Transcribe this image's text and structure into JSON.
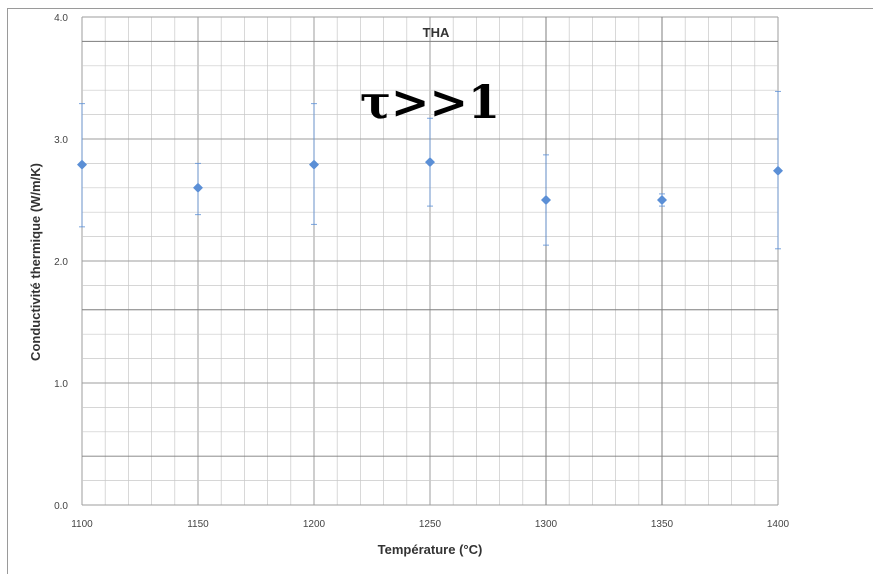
{
  "chart_data": {
    "type": "scatter",
    "title": "THA",
    "annotation": "τ>>1",
    "xlabel": "Température (°C)",
    "ylabel": "Conductivité thermique (W/m/K)",
    "xlim": [
      1100,
      1400
    ],
    "ylim": [
      0.0,
      4.0
    ],
    "xticks": [
      "1100",
      "1150",
      "1200",
      "1250",
      "1300",
      "1350",
      "1400"
    ],
    "yticks": [
      "0.0",
      "1.0",
      "2.0",
      "3.0",
      "4.0"
    ],
    "grid": true,
    "colors": {
      "marker": "#5b8fd6",
      "grid": "#c8c8c8",
      "major_grid": "#7f7f7f"
    },
    "points": [
      {
        "x": 1100,
        "y": 2.79,
        "err_low": 2.28,
        "err_high": 3.29
      },
      {
        "x": 1150,
        "y": 2.6,
        "err_low": 2.38,
        "err_high": 2.8
      },
      {
        "x": 1200,
        "y": 2.79,
        "err_low": 2.3,
        "err_high": 3.29
      },
      {
        "x": 1250,
        "y": 2.81,
        "err_low": 2.45,
        "err_high": 3.17
      },
      {
        "x": 1300,
        "y": 2.5,
        "err_low": 2.13,
        "err_high": 2.87
      },
      {
        "x": 1350,
        "y": 2.5,
        "err_low": 2.45,
        "err_high": 2.55
      },
      {
        "x": 1400,
        "y": 2.74,
        "err_low": 2.1,
        "err_high": 3.39
      }
    ]
  }
}
